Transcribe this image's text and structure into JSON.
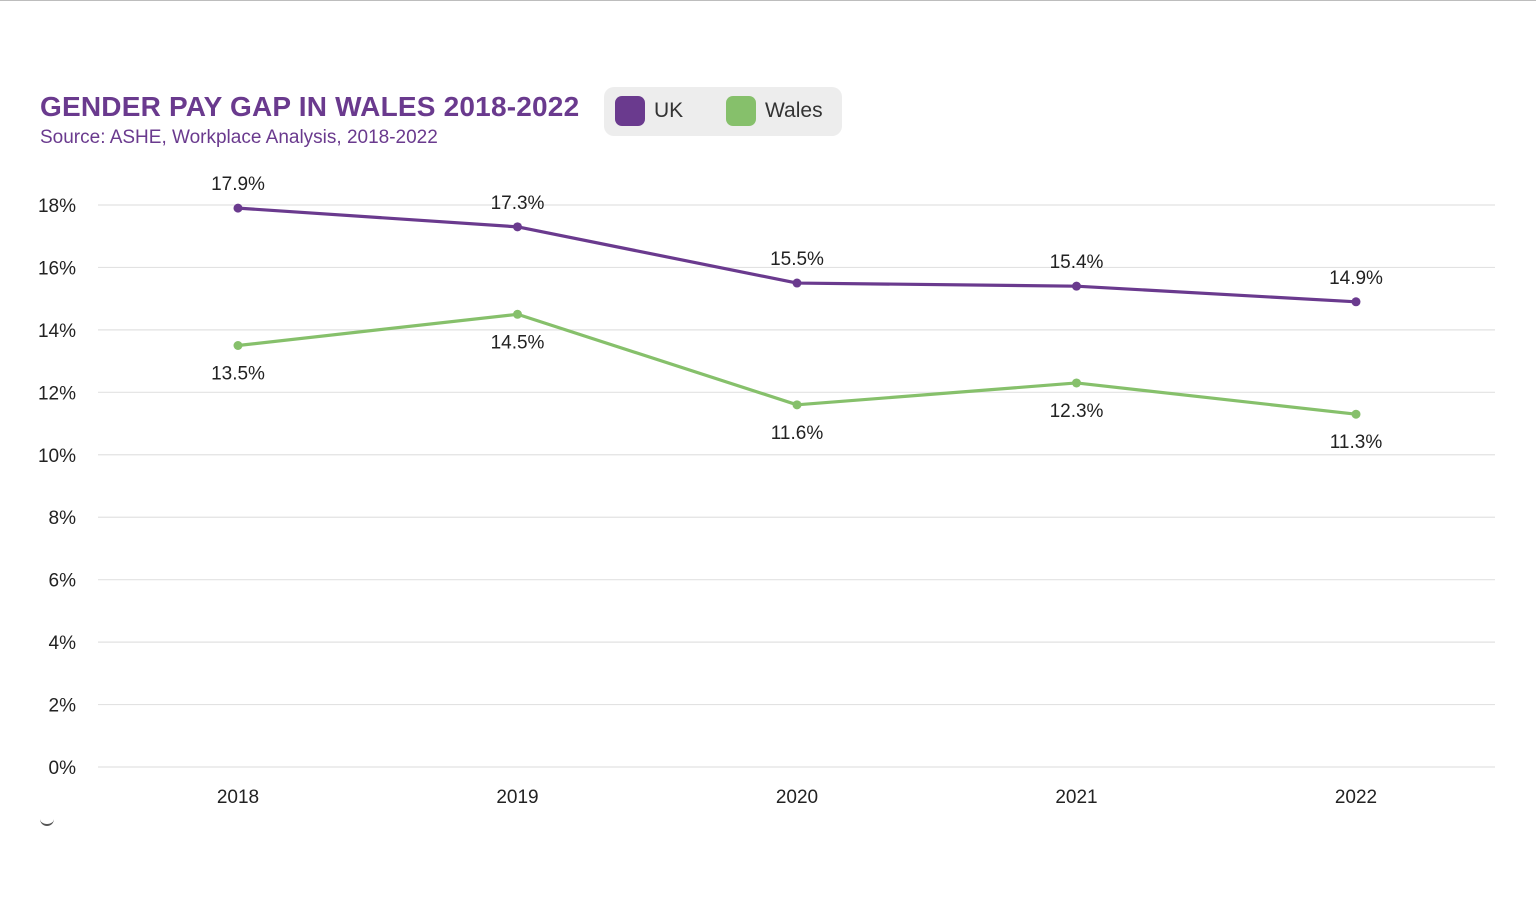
{
  "colors": {
    "uk": "#6a3a8e",
    "wales": "#86c06b",
    "grid": "#e2e2e2",
    "title": "#6a3a8e",
    "legend_bg": "#ededed"
  },
  "legend": {
    "items": [
      {
        "label": "UK",
        "color": "#6a3a8e"
      },
      {
        "label": "Wales",
        "color": "#86c06b"
      }
    ]
  },
  "chart_data": {
    "type": "line",
    "title": "GENDER PAY GAP IN WALES 2018-2022",
    "subtitle": "Source: ASHE, Workplace Analysis, 2018-2022",
    "categories": [
      "2018",
      "2019",
      "2020",
      "2021",
      "2022"
    ],
    "series": [
      {
        "name": "UK",
        "color": "#6a3a8e",
        "values": [
          17.9,
          17.3,
          15.5,
          15.4,
          14.9
        ],
        "labels": [
          "17.9%",
          "17.3%",
          "15.5%",
          "15.4%",
          "14.9%"
        ]
      },
      {
        "name": "Wales",
        "color": "#86c06b",
        "values": [
          13.5,
          14.5,
          11.6,
          12.3,
          11.3
        ],
        "labels": [
          "13.5%",
          "14.5%",
          "11.6%",
          "12.3%",
          "11.3%"
        ]
      }
    ],
    "ylim": [
      0,
      18
    ],
    "yticks": [
      {
        "value": 0,
        "label": "0%"
      },
      {
        "value": 2,
        "label": "2%"
      },
      {
        "value": 4,
        "label": "4%"
      },
      {
        "value": 6,
        "label": "6%"
      },
      {
        "value": 8,
        "label": "8%"
      },
      {
        "value": 10,
        "label": "10%"
      },
      {
        "value": 12,
        "label": "12%"
      },
      {
        "value": 14,
        "label": "14%"
      },
      {
        "value": 16,
        "label": "16%"
      },
      {
        "value": 18,
        "label": "18%"
      }
    ],
    "xlabel": "",
    "ylabel": "",
    "grid": true,
    "legend_position": "top"
  }
}
